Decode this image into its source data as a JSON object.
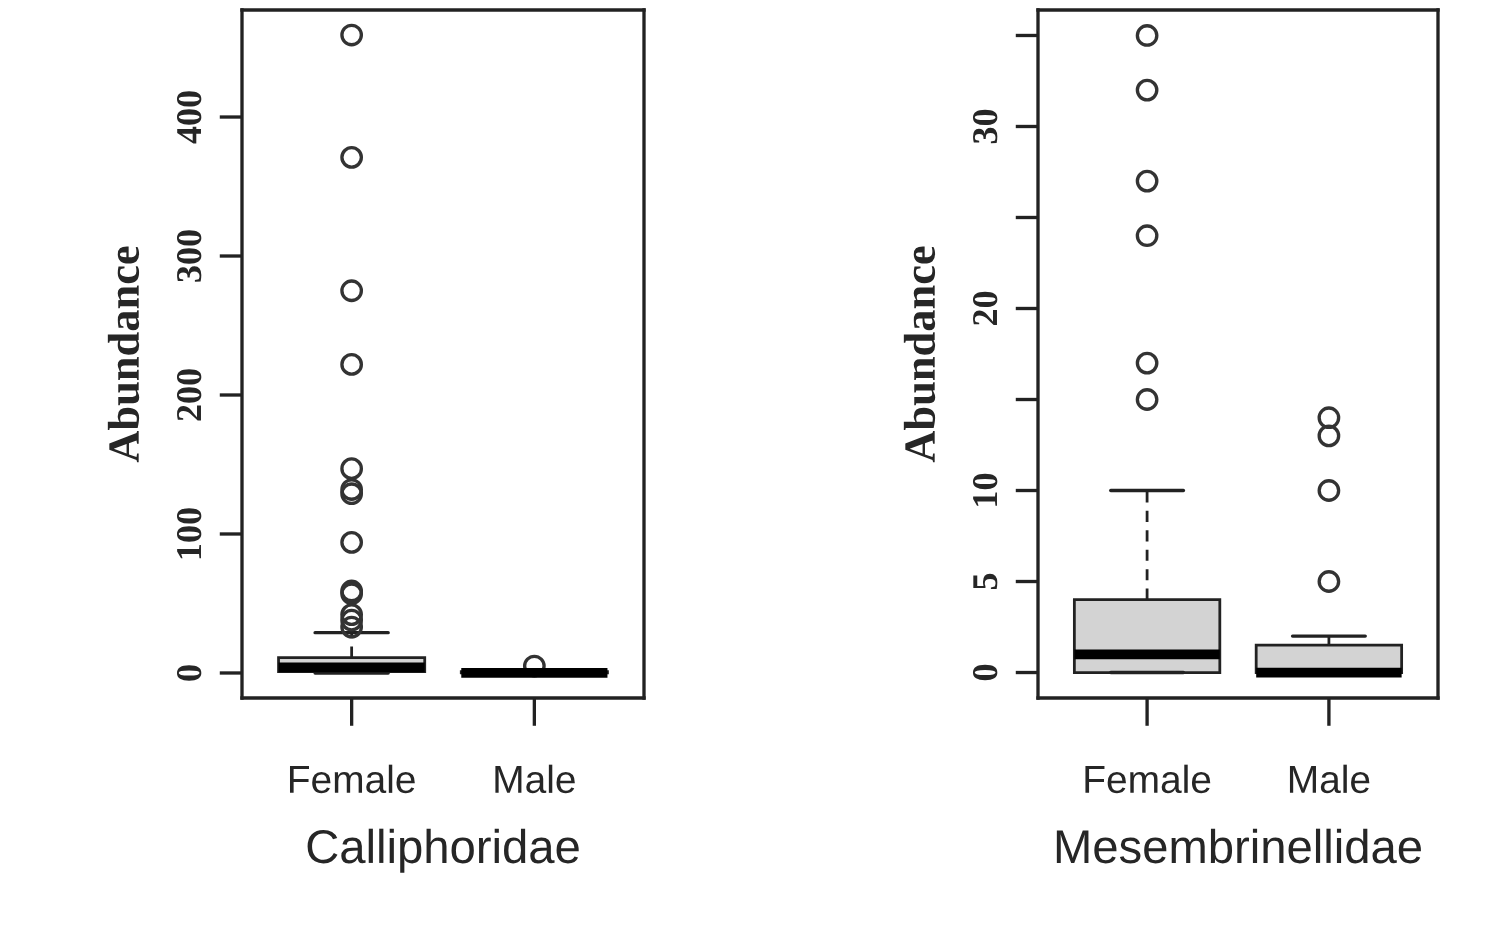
{
  "chart_data": [
    {
      "type": "box",
      "xlabel": "Calliphoridae",
      "ylabel": "Abundance",
      "categories": [
        "Female",
        "Male"
      ],
      "color": "#d3d3d3",
      "grid": false,
      "legend": false,
      "boxes": [
        {
          "low": 0,
          "q1": 1,
          "median": 4,
          "q3": 11,
          "high": 29,
          "outliers": [
            459,
            371,
            275,
            222,
            147,
            132,
            129,
            94,
            59,
            57,
            42,
            38,
            33
          ]
        },
        {
          "low": 0,
          "q1": 0,
          "median": 0,
          "q3": 1,
          "high": 2,
          "outliers": [
            5
          ]
        }
      ],
      "ylim": [
        -18,
        477
      ],
      "yticks": [
        0,
        100,
        200,
        300,
        400
      ]
    },
    {
      "type": "box",
      "xlabel": "Mesembrinellidae",
      "ylabel": "Abundance",
      "categories": [
        "Female",
        "Male"
      ],
      "color": "#d3d3d3",
      "grid": false,
      "legend": false,
      "boxes": [
        {
          "low": 0,
          "q1": 0,
          "median": 1,
          "q3": 4,
          "high": 10,
          "outliers": [
            35,
            32,
            27,
            24,
            17,
            15
          ]
        },
        {
          "low": 0,
          "q1": 0,
          "median": 0,
          "q3": 1.5,
          "high": 2,
          "outliers": [
            14,
            13,
            10,
            5
          ]
        }
      ],
      "ylim": [
        -1.4,
        36.4
      ],
      "yticks": [
        0,
        5,
        10,
        {
          "value": 15,
          "label": null
        },
        20,
        {
          "value": 25,
          "label": null
        },
        30,
        {
          "value": 35,
          "label": null
        }
      ]
    }
  ]
}
